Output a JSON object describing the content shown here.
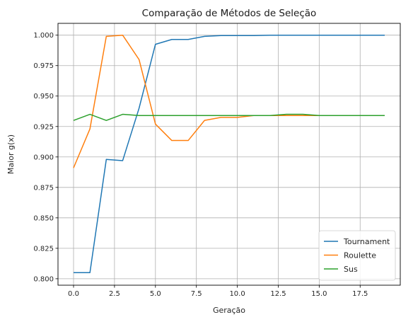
{
  "chart_data": {
    "type": "line",
    "title": "Comparação de Métodos de Seleção",
    "xlabel": "Geração",
    "ylabel": "Maior g(x)",
    "xlim": [
      -0.95,
      19.95
    ],
    "ylim": [
      0.7947,
      1.0097
    ],
    "xticks": [
      0.0,
      2.5,
      5.0,
      7.5,
      10.0,
      12.5,
      15.0,
      17.5
    ],
    "xtick_labels": [
      "0.0",
      "2.5",
      "5.0",
      "7.5",
      "10.0",
      "12.5",
      "15.0",
      "17.5"
    ],
    "yticks": [
      0.8,
      0.825,
      0.85,
      0.875,
      0.9,
      0.925,
      0.95,
      0.975,
      1.0
    ],
    "ytick_labels": [
      "0.800",
      "0.825",
      "0.850",
      "0.875",
      "0.900",
      "0.925",
      "0.950",
      "0.975",
      "1.000"
    ],
    "grid": true,
    "legend_position": "bottom-right",
    "x": [
      0,
      1,
      2,
      3,
      4,
      5,
      6,
      7,
      8,
      9,
      10,
      11,
      12,
      13,
      14,
      15,
      16,
      17,
      18,
      19
    ],
    "series": [
      {
        "name": "Tournament",
        "color": "#1f77b4",
        "values": [
          0.805,
          0.805,
          0.898,
          0.897,
          0.94,
          0.9925,
          0.9965,
          0.9965,
          0.999,
          0.9997,
          0.9997,
          0.9997,
          1.0,
          1.0,
          1.0,
          1.0,
          1.0,
          1.0,
          1.0,
          1.0
        ]
      },
      {
        "name": "Roulette",
        "color": "#ff7f0e",
        "values": [
          0.891,
          0.923,
          0.999,
          1.0,
          0.98,
          0.927,
          0.9135,
          0.9135,
          0.93,
          0.9325,
          0.9325,
          0.934,
          0.934,
          0.934,
          0.934,
          0.934,
          0.934,
          0.934,
          0.934,
          0.934
        ]
      },
      {
        "name": "Sus",
        "color": "#2ca02c",
        "values": [
          0.93,
          0.935,
          0.93,
          0.935,
          0.934,
          0.934,
          0.934,
          0.934,
          0.934,
          0.934,
          0.934,
          0.934,
          0.934,
          0.935,
          0.935,
          0.934,
          0.934,
          0.934,
          0.934,
          0.934
        ]
      }
    ]
  }
}
